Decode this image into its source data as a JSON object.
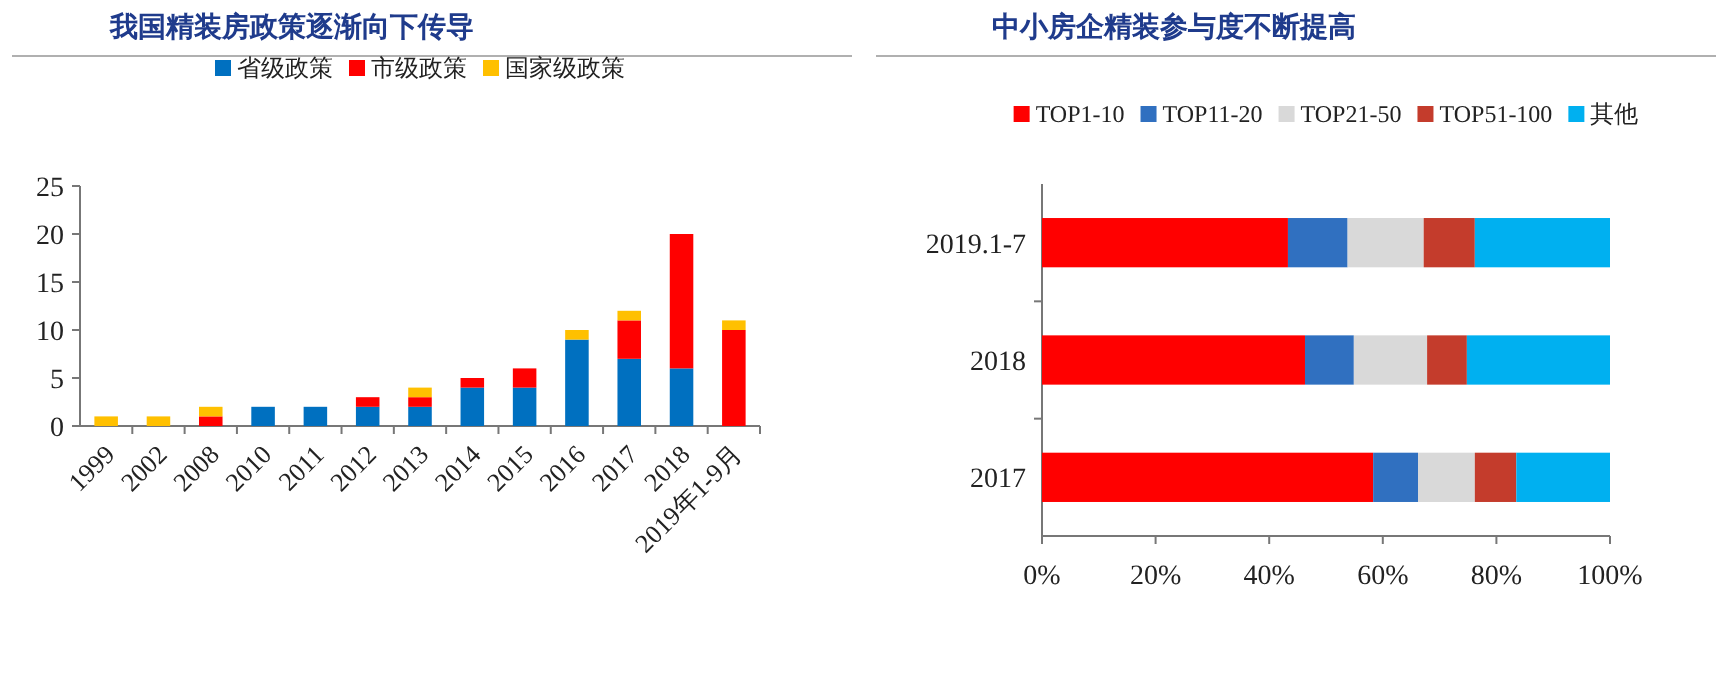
{
  "chart_data": [
    {
      "type": "bar",
      "title": "我国精装房政策逐渐向下传导",
      "stacked": true,
      "legend": "top",
      "categories": [
        "1999",
        "2002",
        "2008",
        "2010",
        "2011",
        "2012",
        "2013",
        "2014",
        "2015",
        "2016",
        "2017",
        "2018",
        "2019年1-9月"
      ],
      "series": [
        {
          "name": "省级政策",
          "color": "#0070c0",
          "values": [
            0,
            0,
            0,
            2,
            2,
            2,
            2,
            4,
            4,
            9,
            7,
            6,
            0
          ]
        },
        {
          "name": "市级政策",
          "color": "#ff0000",
          "values": [
            0,
            0,
            1,
            0,
            0,
            1,
            1,
            1,
            2,
            0,
            4,
            14,
            10
          ]
        },
        {
          "name": "国家级政策",
          "color": "#ffc000",
          "values": [
            1,
            1,
            1,
            0,
            0,
            0,
            1,
            0,
            0,
            1,
            1,
            0,
            1
          ]
        }
      ],
      "ylim": [
        0,
        25
      ],
      "yticks": [
        0,
        5,
        10,
        15,
        20,
        25
      ]
    },
    {
      "type": "bar",
      "title": "中小房企精装参与度不断提高",
      "stacked": true,
      "orientation": "horizontal",
      "legend": "top",
      "categories": [
        "2019.1-7",
        "2018",
        "2017"
      ],
      "series": [
        {
          "name": "TOP1-10",
          "color": "#ff0000",
          "values": [
            43.3,
            46.3,
            58.3
          ]
        },
        {
          "name": "TOP11-20",
          "color": "#3070c0",
          "values": [
            10.5,
            8.6,
            7.9
          ]
        },
        {
          "name": "TOP21-50",
          "color": "#d9d9d9",
          "values": [
            13.4,
            12.9,
            10.0
          ]
        },
        {
          "name": "TOP51-100",
          "color": "#c43c2c",
          "values": [
            9.0,
            7.0,
            7.3
          ]
        },
        {
          "name": "其他",
          "color": "#00b0f0",
          "values": [
            23.8,
            25.2,
            16.5
          ]
        }
      ],
      "xlim": [
        0,
        100
      ],
      "xticks": [
        {
          "value": 0,
          "label": "0%"
        },
        {
          "value": 20,
          "label": "20%"
        },
        {
          "value": 40,
          "label": "40%"
        },
        {
          "value": 60,
          "label": "60%"
        },
        {
          "value": 80,
          "label": "80%"
        },
        {
          "value": 100,
          "label": "100%"
        }
      ]
    }
  ]
}
